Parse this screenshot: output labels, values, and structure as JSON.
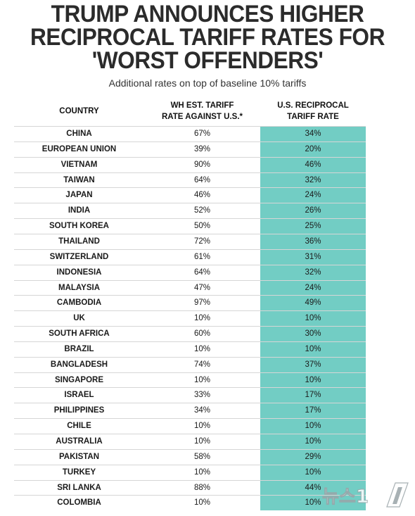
{
  "chart_data": {
    "type": "table",
    "title": "TRUMP ANNOUNCES HIGHER RECIPROCAL TARIFF RATES FOR 'WORST OFFENDERS'",
    "subtitle": "Additional rates on top of baseline 10% tariffs",
    "columns": [
      "COUNTRY",
      "WH EST. TARIFF RATE AGAINST U.S.*",
      "U.S. RECIPROCAL TARIFF RATE"
    ],
    "highlight_color": "#72cdc4",
    "rows": [
      {
        "country": "CHINA",
        "wh": "67%",
        "us": "34%"
      },
      {
        "country": "EUROPEAN UNION",
        "wh": "39%",
        "us": "20%"
      },
      {
        "country": "VIETNAM",
        "wh": "90%",
        "us": "46%"
      },
      {
        "country": "TAIWAN",
        "wh": "64%",
        "us": "32%"
      },
      {
        "country": "JAPAN",
        "wh": "46%",
        "us": "24%"
      },
      {
        "country": "INDIA",
        "wh": "52%",
        "us": "26%"
      },
      {
        "country": "SOUTH KOREA",
        "wh": "50%",
        "us": "25%"
      },
      {
        "country": "THAILAND",
        "wh": "72%",
        "us": "36%"
      },
      {
        "country": "SWITZERLAND",
        "wh": "61%",
        "us": "31%"
      },
      {
        "country": "INDONESIA",
        "wh": "64%",
        "us": "32%"
      },
      {
        "country": "MALAYSIA",
        "wh": "47%",
        "us": "24%"
      },
      {
        "country": "CAMBODIA",
        "wh": "97%",
        "us": "49%"
      },
      {
        "country": "UK",
        "wh": "10%",
        "us": "10%"
      },
      {
        "country": "SOUTH AFRICA",
        "wh": "60%",
        "us": "30%"
      },
      {
        "country": "BRAZIL",
        "wh": "10%",
        "us": "10%"
      },
      {
        "country": "BANGLADESH",
        "wh": "74%",
        "us": "37%"
      },
      {
        "country": "SINGAPORE",
        "wh": "10%",
        "us": "10%"
      },
      {
        "country": "ISRAEL",
        "wh": "33%",
        "us": "17%"
      },
      {
        "country": "PHILIPPINES",
        "wh": "34%",
        "us": "17%"
      },
      {
        "country": "CHILE",
        "wh": "10%",
        "us": "10%"
      },
      {
        "country": "AUSTRALIA",
        "wh": "10%",
        "us": "10%"
      },
      {
        "country": "PAKISTAN",
        "wh": "58%",
        "us": "29%"
      },
      {
        "country": "TURKEY",
        "wh": "10%",
        "us": "10%"
      },
      {
        "country": "SRI LANKA",
        "wh": "88%",
        "us": "44%"
      },
      {
        "country": "COLOMBIA",
        "wh": "10%",
        "us": "10%"
      }
    ]
  },
  "header": {
    "title_line1": "TRUMP ANNOUNCES HIGHER",
    "title_line2": "RECIPROCAL TARIFF RATES FOR",
    "title_line3": "'WORST OFFENDERS'",
    "subtitle": "Additional rates on top of baseline 10% tariffs"
  },
  "columns": {
    "country": "COUNTRY",
    "wh_line1": "WH EST. TARIFF",
    "wh_line2": "RATE AGAINST U.S.*",
    "us_line1": "U.S. RECIPROCAL",
    "us_line2": "TARIFF RATE"
  },
  "watermark": {
    "text": "뉴스1",
    "icon": "news1-logo-icon"
  }
}
